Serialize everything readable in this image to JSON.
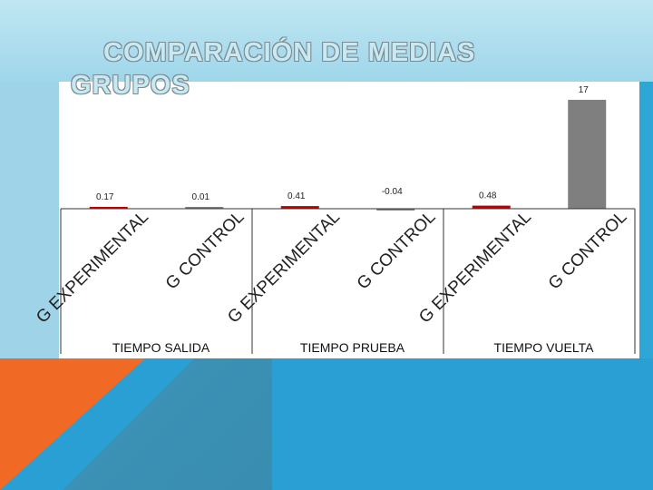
{
  "title_line1": "COMPARACIÓN DE MEDIAS",
  "title_line2": "GRUPOS",
  "chart_data": {
    "type": "bar",
    "title": "COMPARACIÓN DE MEDIAS GRUPOS",
    "groups": [
      "TIEMPO SALIDA",
      "TIEMPO PRUEBA",
      "TIEMPO VUELTA"
    ],
    "categories": [
      "G EXPERIMENTAL",
      "G CONTROL",
      "G EXPERIMENTAL",
      "G CONTROL",
      "G EXPERIMENTAL",
      "G CONTROL"
    ],
    "values": [
      0.17,
      0.01,
      0.41,
      -0.04,
      0.48,
      17
    ],
    "value_labels": [
      "0.17",
      "0.01",
      "0.41",
      "-0.04",
      "0.48",
      "17"
    ],
    "bar_colors": [
      "#c00000",
      "#7f7f7f",
      "#c00000",
      "#7f7f7f",
      "#c00000",
      "#7f7f7f"
    ],
    "xlabel": "",
    "ylabel": "",
    "grid": false,
    "legend": "none"
  }
}
